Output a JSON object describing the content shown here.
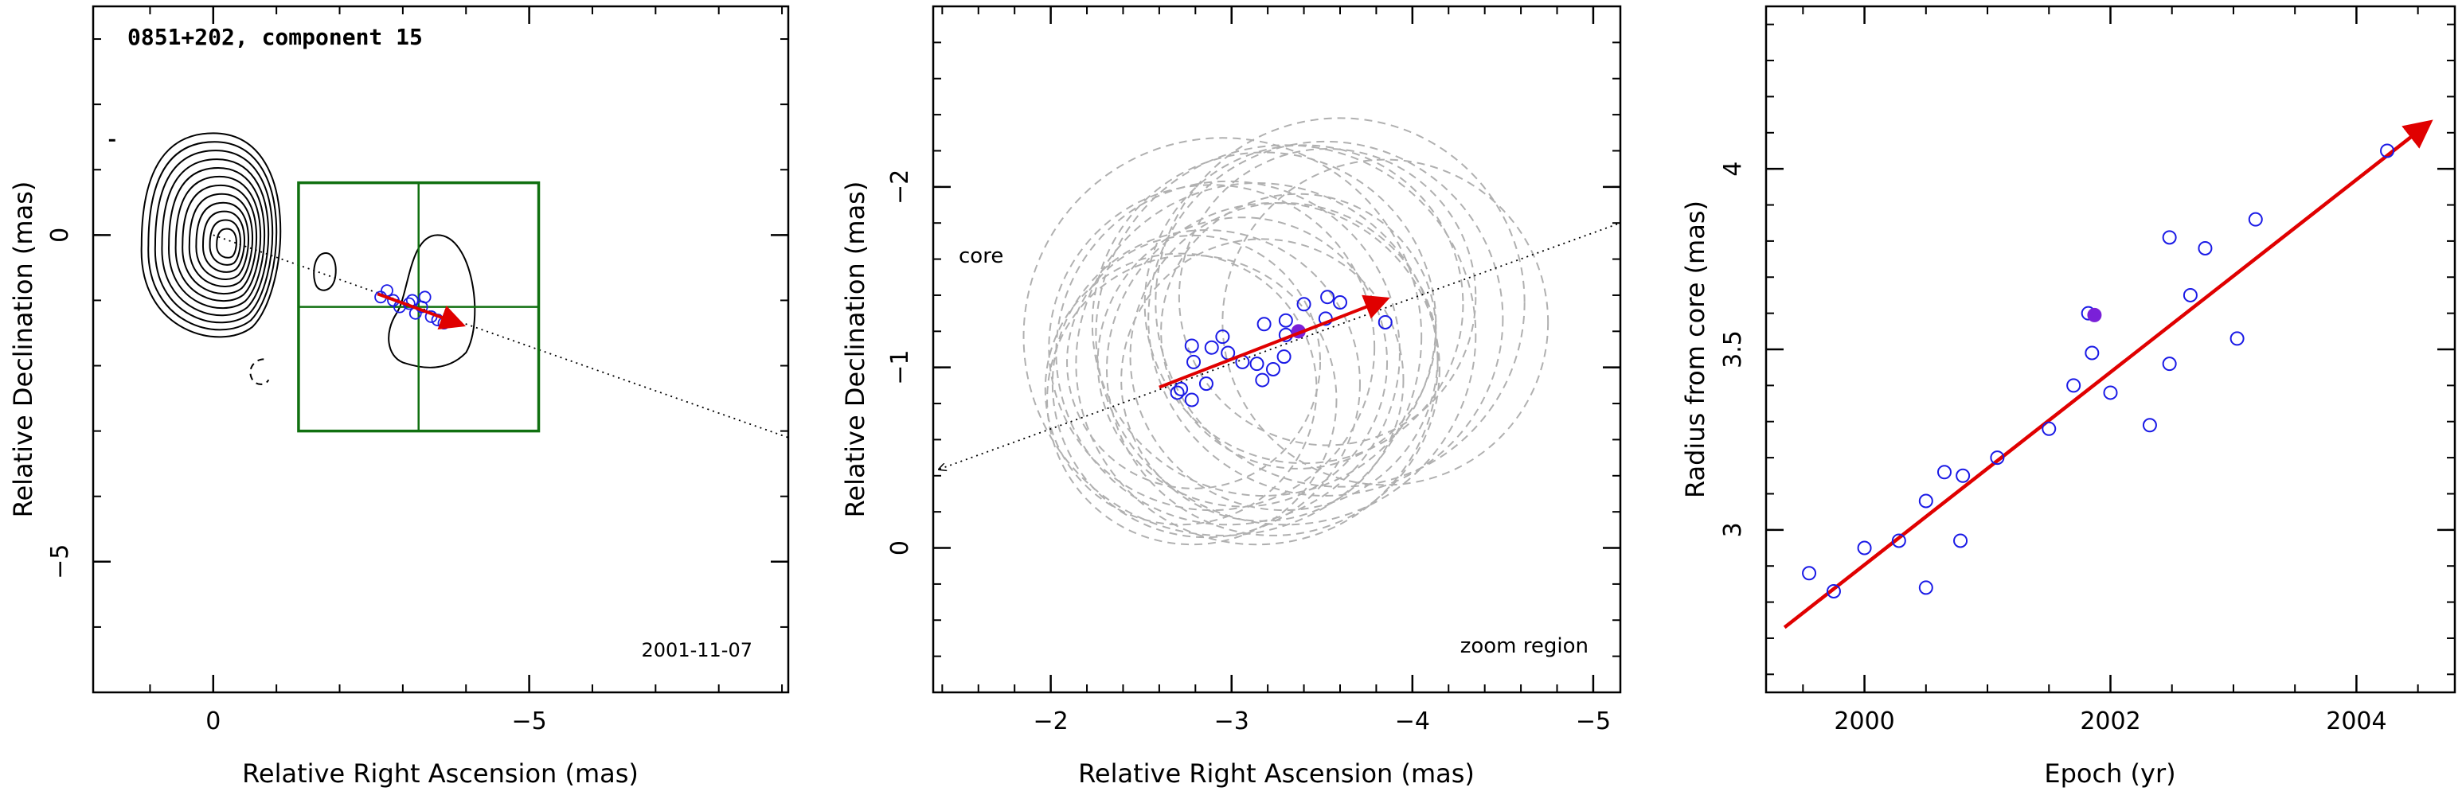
{
  "chart_data": [
    {
      "type": "contour",
      "title": "0851+202, component 15",
      "xlabel": "Relative Right Ascension (mas)",
      "ylabel": "Relative Declination (mas)",
      "xlim": [
        1.9,
        -9.1
      ],
      "ylim": [
        -7.0,
        3.5
      ],
      "x_ticks": [
        0,
        -5
      ],
      "x_tick_labels": [
        "0",
        "−5"
      ],
      "y_ticks": [
        0,
        -5
      ],
      "y_tick_labels": [
        "0",
        "−5"
      ],
      "date": "2001-11-07",
      "contour_color": "#000000",
      "trajectory_line": {
        "from": [
          0,
          0
        ],
        "to": [
          -9.1,
          -3.1
        ]
      },
      "zoom_box": {
        "x": [
          -1.35,
          -5.15
        ],
        "y": [
          0.8,
          -3.0
        ],
        "color": "#107010"
      },
      "component_positions": [
        {
          "x": -2.75,
          "y": -0.85
        },
        {
          "x": -2.65,
          "y": -0.95
        },
        {
          "x": -2.85,
          "y": -1.0
        },
        {
          "x": -2.95,
          "y": -1.1
        },
        {
          "x": -3.1,
          "y": -1.05
        },
        {
          "x": -3.2,
          "y": -1.2
        },
        {
          "x": -3.3,
          "y": -1.1
        },
        {
          "x": -3.45,
          "y": -1.25
        },
        {
          "x": -3.55,
          "y": -1.3
        },
        {
          "x": -3.35,
          "y": -0.95
        },
        {
          "x": -3.15,
          "y": -1.0
        },
        {
          "x": -3.65,
          "y": -1.35
        }
      ],
      "motion_arrow": {
        "from": [
          -2.6,
          -0.9
        ],
        "to": [
          -3.95,
          -1.38
        ],
        "color": "#e00000"
      }
    },
    {
      "type": "scatter",
      "xlabel": "Relative Right Ascension (mas)",
      "ylabel": "Relative Declination (mas)",
      "xlim": [
        -1.35,
        -5.15
      ],
      "ylim": [
        0.8,
        -3.0
      ],
      "x_ticks": [
        -2,
        -3,
        -4,
        -5
      ],
      "x_tick_labels": [
        "−2",
        "−3",
        "−4",
        "−5"
      ],
      "y_ticks": [
        0,
        -1,
        -2
      ],
      "y_tick_labels": [
        "0",
        "−1",
        "−2"
      ],
      "annotation_core": "core",
      "annotation_zoom": "zoom region",
      "trajectory_line": {
        "from": [
          -1.35,
          -0.45
        ],
        "to": [
          -5.15,
          -1.8
        ]
      },
      "points": [
        {
          "x": -2.72,
          "y": -0.88
        },
        {
          "x": -2.78,
          "y": -0.82
        },
        {
          "x": -2.7,
          "y": -0.86
        },
        {
          "x": -2.86,
          "y": -0.91
        },
        {
          "x": -2.79,
          "y": -1.03
        },
        {
          "x": -2.78,
          "y": -1.12
        },
        {
          "x": -2.89,
          "y": -1.11
        },
        {
          "x": -2.95,
          "y": -1.17
        },
        {
          "x": -2.98,
          "y": -1.08
        },
        {
          "x": -3.06,
          "y": -1.03
        },
        {
          "x": -3.14,
          "y": -1.02
        },
        {
          "x": -3.17,
          "y": -0.93
        },
        {
          "x": -3.23,
          "y": -0.99
        },
        {
          "x": -3.29,
          "y": -1.06
        },
        {
          "x": -3.18,
          "y": -1.24
        },
        {
          "x": -3.3,
          "y": -1.18
        },
        {
          "x": -3.3,
          "y": -1.26
        },
        {
          "x": -3.4,
          "y": -1.35
        },
        {
          "x": -3.52,
          "y": -1.27
        },
        {
          "x": -3.53,
          "y": -1.39
        },
        {
          "x": -3.6,
          "y": -1.36
        },
        {
          "x": -3.85,
          "y": -1.25
        }
      ],
      "highlighted_point": {
        "x": -3.37,
        "y": -1.2
      },
      "uncertainty_circles": [
        {
          "x": -2.72,
          "y": -0.88,
          "r": 0.75
        },
        {
          "x": -2.78,
          "y": -0.82,
          "r": 0.8
        },
        {
          "x": -2.86,
          "y": -0.91,
          "r": 0.85
        },
        {
          "x": -2.79,
          "y": -1.03,
          "r": 0.7
        },
        {
          "x": -2.89,
          "y": -1.11,
          "r": 0.9
        },
        {
          "x": -2.98,
          "y": -1.08,
          "r": 0.95
        },
        {
          "x": -3.06,
          "y": -1.03,
          "r": 0.8
        },
        {
          "x": -3.14,
          "y": -1.02,
          "r": 1.0
        },
        {
          "x": -3.17,
          "y": -0.93,
          "r": 0.78
        },
        {
          "x": -3.23,
          "y": -0.99,
          "r": 0.92
        },
        {
          "x": -3.29,
          "y": -1.06,
          "r": 0.85
        },
        {
          "x": -3.18,
          "y": -1.24,
          "r": 0.95
        },
        {
          "x": -3.3,
          "y": -1.18,
          "r": 1.05
        },
        {
          "x": -3.4,
          "y": -1.35,
          "r": 0.88
        },
        {
          "x": -3.52,
          "y": -1.27,
          "r": 0.98
        },
        {
          "x": -3.53,
          "y": -1.39,
          "r": 0.82
        },
        {
          "x": -3.6,
          "y": -1.36,
          "r": 1.02
        },
        {
          "x": -3.85,
          "y": -1.25,
          "r": 0.9
        },
        {
          "x": -3.37,
          "y": -1.2,
          "r": 0.76
        },
        {
          "x": -2.95,
          "y": -1.17,
          "r": 1.1
        }
      ],
      "motion_arrow": {
        "from": [
          -2.6,
          -0.89
        ],
        "to": [
          -3.86,
          -1.38
        ],
        "color": "#e00000"
      },
      "point_color": "#1a1ae6"
    },
    {
      "type": "scatter",
      "xlabel": "Epoch (yr)",
      "ylabel": "Radius from core (mas)",
      "xlim": [
        1999.2,
        2004.8
      ],
      "ylim": [
        2.55,
        4.45
      ],
      "x_ticks": [
        2000,
        2002,
        2004
      ],
      "x_tick_labels": [
        "2000",
        "2002",
        "2004"
      ],
      "y_ticks": [
        3,
        3.5,
        4
      ],
      "y_tick_labels": [
        "3",
        "3.5",
        "4"
      ],
      "points": [
        {
          "x": 1999.55,
          "y": 2.88
        },
        {
          "x": 1999.75,
          "y": 2.83
        },
        {
          "x": 2000.0,
          "y": 2.95
        },
        {
          "x": 2000.28,
          "y": 2.97
        },
        {
          "x": 2000.5,
          "y": 3.08
        },
        {
          "x": 2000.5,
          "y": 2.84
        },
        {
          "x": 2000.65,
          "y": 3.16
        },
        {
          "x": 2000.78,
          "y": 2.97
        },
        {
          "x": 2000.8,
          "y": 3.15
        },
        {
          "x": 2001.08,
          "y": 3.2
        },
        {
          "x": 2001.5,
          "y": 3.28
        },
        {
          "x": 2001.7,
          "y": 3.4
        },
        {
          "x": 2001.82,
          "y": 3.6
        },
        {
          "x": 2001.85,
          "y": 3.49
        },
        {
          "x": 2002.0,
          "y": 3.38
        },
        {
          "x": 2002.32,
          "y": 3.29
        },
        {
          "x": 2002.48,
          "y": 3.81
        },
        {
          "x": 2002.48,
          "y": 3.46
        },
        {
          "x": 2002.65,
          "y": 3.65
        },
        {
          "x": 2002.77,
          "y": 3.78
        },
        {
          "x": 2003.03,
          "y": 3.53
        },
        {
          "x": 2003.18,
          "y": 3.86
        },
        {
          "x": 2004.25,
          "y": 4.05
        }
      ],
      "highlighted_point": {
        "x": 2001.87,
        "y": 3.595
      },
      "fit_line": {
        "from": [
          1999.35,
          2.73
        ],
        "to": [
          2004.6,
          4.13
        ],
        "color": "#e00000"
      },
      "point_color": "#1a1ae6"
    }
  ]
}
